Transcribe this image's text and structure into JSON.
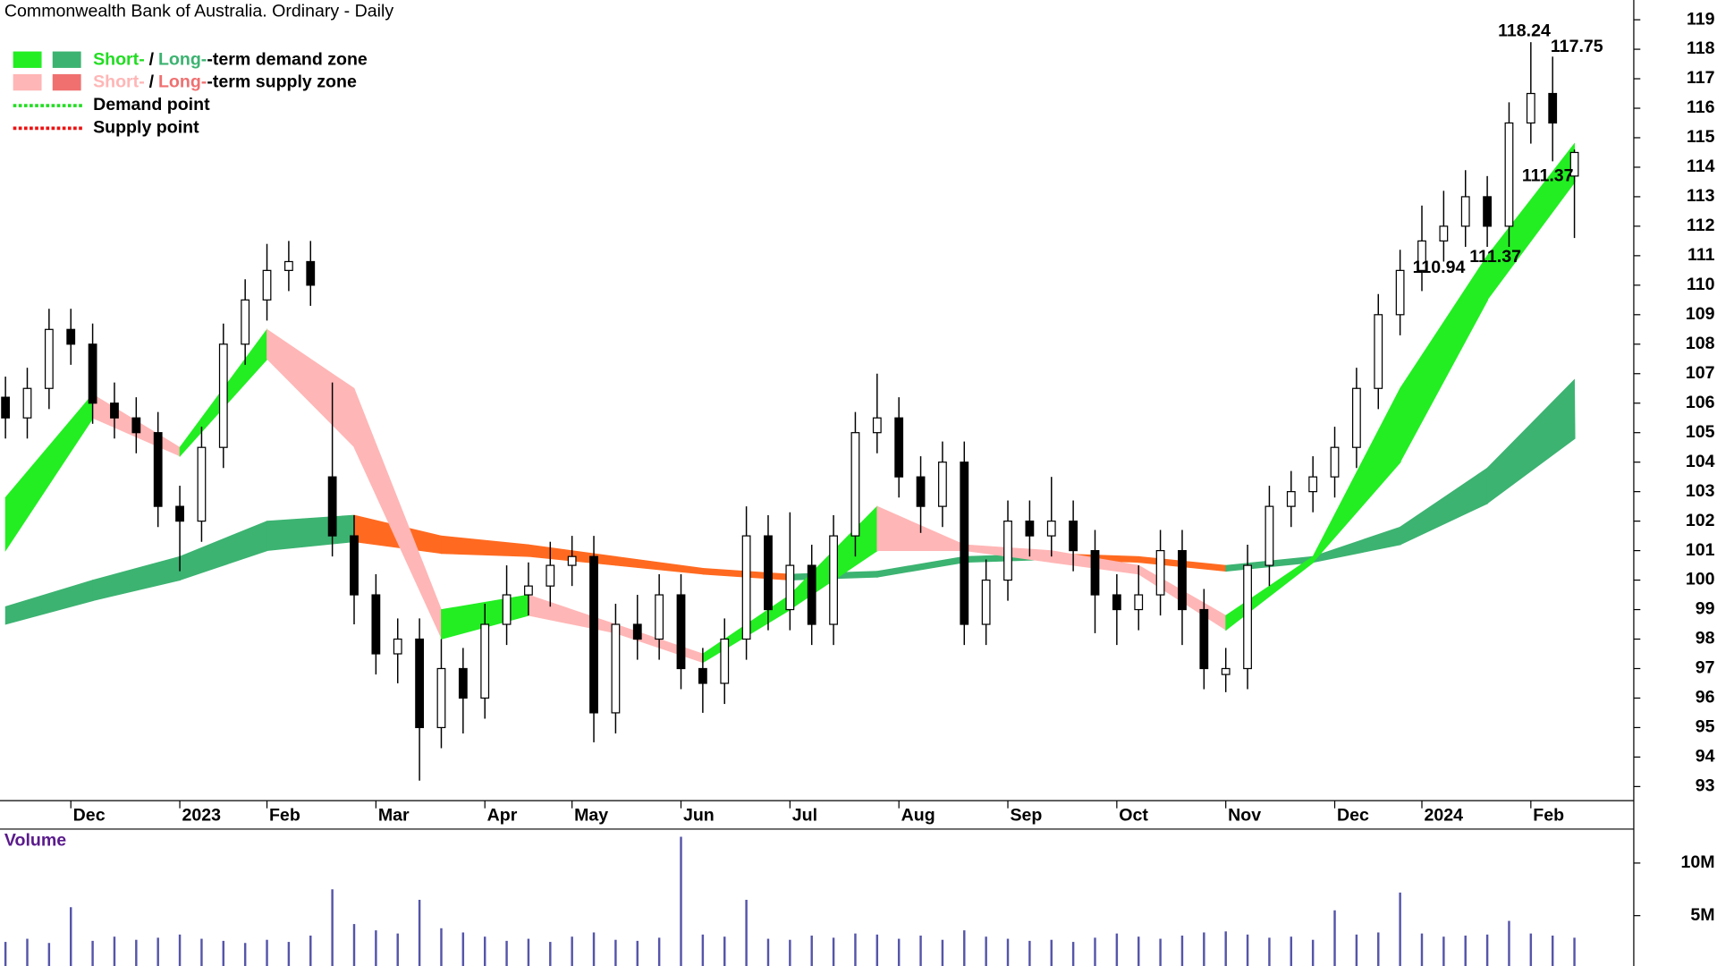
{
  "chart_data": [
    {
      "type": "candlestick",
      "title": "Commonwealth Bank of Australia. Ordinary - Daily",
      "categories": [
        null,
        null,
        null,
        "Dec",
        null,
        null,
        null,
        null,
        "2023",
        null,
        null,
        null,
        "Feb",
        null,
        null,
        null,
        null,
        "Mar",
        null,
        null,
        null,
        null,
        "Apr",
        null,
        null,
        null,
        "May",
        null,
        null,
        null,
        null,
        "Jun",
        null,
        null,
        null,
        null,
        "Jul",
        null,
        null,
        null,
        null,
        "Aug",
        null,
        null,
        null,
        null,
        "Sep",
        null,
        null,
        null,
        null,
        "Oct",
        null,
        null,
        null,
        null,
        "Nov",
        null,
        null,
        null,
        null,
        "Dec",
        null,
        null,
        null,
        "2024",
        null,
        null,
        null,
        null,
        "Feb",
        null,
        null
      ],
      "open": [
        106.2,
        105.5,
        106.5,
        108.5,
        108,
        106,
        105.5,
        105,
        102.5,
        102,
        104.5,
        108,
        109.5,
        110.5,
        110.8,
        103.5,
        101.5,
        99.5,
        97.5,
        98,
        95,
        97,
        96,
        98.5,
        99.5,
        99.8,
        100.5,
        100.8,
        95.5,
        98.5,
        98,
        99.5,
        97,
        96.5,
        98,
        101.5,
        99,
        100.5,
        98.5,
        101.5,
        105,
        105.5,
        103.5,
        102.5,
        104,
        98.5,
        100,
        102,
        101.5,
        102,
        101,
        99.5,
        99,
        99.5,
        101,
        99,
        96.8,
        97,
        100.5,
        102.5,
        103,
        103.5,
        104.5,
        106.5,
        109,
        110.5,
        111.5,
        112,
        113,
        112,
        115.5,
        116.5,
        113.7
      ],
      "high": [
        106.9,
        107.2,
        109.2,
        109.2,
        108.7,
        106.7,
        106.2,
        105.7,
        103.2,
        105.2,
        108.7,
        110.2,
        111.4,
        111.5,
        111.5,
        106.7,
        102.2,
        100.2,
        98.7,
        98.7,
        98,
        97.7,
        99.2,
        100.5,
        100.6,
        101.3,
        101.5,
        101.5,
        99.2,
        99.5,
        100.2,
        100.2,
        97.7,
        98.7,
        102.5,
        102.2,
        102.3,
        101.2,
        102.2,
        105.7,
        107,
        106.2,
        104.2,
        104.7,
        104.7,
        100.7,
        102.7,
        102.7,
        103.5,
        102.7,
        101.7,
        100.2,
        100.5,
        101.7,
        101.7,
        99.7,
        97.7,
        101.2,
        103.2,
        103.7,
        104.2,
        105.2,
        107.2,
        109.7,
        111.2,
        112.7,
        113.2,
        113.9,
        113.7,
        116.2,
        118.24,
        117.75,
        114.6
      ],
      "low": [
        104.8,
        104.8,
        105.8,
        107.3,
        105.3,
        104.8,
        104.3,
        101.8,
        100.3,
        101.3,
        103.8,
        107.3,
        108.8,
        109.8,
        109.3,
        100.8,
        98.5,
        96.8,
        96.5,
        93.2,
        94.3,
        94.8,
        95.3,
        97.8,
        98.8,
        99.1,
        99.8,
        94.5,
        94.8,
        97.3,
        97.3,
        96.3,
        95.5,
        95.8,
        97.3,
        98.3,
        98.3,
        97.8,
        97.8,
        100.8,
        104.3,
        102.8,
        101.6,
        101.8,
        97.8,
        97.8,
        99.3,
        100.8,
        100.8,
        100.3,
        98.2,
        97.8,
        98.3,
        98.8,
        97.8,
        96.3,
        96.2,
        96.3,
        99.8,
        101.8,
        102.3,
        102.8,
        103.8,
        105.8,
        108.3,
        109.8,
        110.8,
        111.3,
        111.3,
        111.3,
        114.8,
        114.2,
        111.6
      ],
      "close": [
        105.5,
        106.5,
        108.5,
        108,
        106,
        105.5,
        105,
        102.5,
        102,
        104.5,
        108,
        109.5,
        110.5,
        110.8,
        110,
        101.5,
        99.5,
        97.5,
        98,
        95,
        97,
        96,
        98.5,
        99.5,
        99.8,
        100.5,
        100.8,
        95.5,
        98.5,
        98,
        99.5,
        97,
        96.5,
        98,
        101.5,
        99,
        100.5,
        98.5,
        101.5,
        105,
        105.5,
        103.5,
        102.5,
        104,
        98.5,
        100,
        102,
        101.5,
        102,
        101,
        99.5,
        99,
        99.5,
        101,
        99,
        97,
        97,
        100.5,
        102.5,
        103,
        103.5,
        104.5,
        106.5,
        109,
        110.5,
        111.5,
        112,
        113,
        112,
        115.5,
        116.5,
        115.5,
        114.5
      ],
      "ylim": [
        92.56,
        119.67
      ],
      "yticks": [
        93,
        94,
        95,
        96,
        97,
        98,
        99,
        100,
        101,
        102,
        103,
        104,
        105,
        106,
        107,
        108,
        109,
        110,
        111,
        112,
        113,
        114,
        115,
        116,
        117,
        118,
        119
      ],
      "bands": [
        {
          "x": [
            0,
            4,
            8,
            12,
            16,
            20,
            24,
            28,
            32,
            36,
            40,
            44,
            48,
            52,
            56,
            60,
            64,
            68,
            72
          ],
          "upper": [
            99.1,
            100,
            100.8,
            102,
            102.2,
            101.5,
            101.2,
            100.8,
            100.4,
            100.2,
            100.3,
            100.8,
            100.9,
            100.8,
            100.5,
            100.8,
            101.8,
            103.8,
            106.8
          ],
          "lower": [
            98.5,
            99.3,
            100,
            101,
            101.3,
            100.9,
            100.8,
            100.5,
            100.2,
            100,
            100.1,
            100.6,
            100.7,
            100.6,
            100.3,
            100.6,
            101.2,
            102.6,
            104.8
          ],
          "color": "#3cb371",
          "color_down": "#ff6a20"
        },
        {
          "x": [
            0,
            4,
            8,
            12,
            16,
            20,
            24,
            28,
            32,
            36,
            40,
            44,
            48,
            52,
            56,
            60,
            64,
            68,
            72
          ],
          "upper": [
            102.8,
            106.3,
            104.5,
            108.5,
            106.5,
            99,
            99.5,
            98.5,
            97.5,
            99.5,
            102.5,
            101.2,
            101,
            100.5,
            98.8,
            100.8,
            106.5,
            111,
            114.8
          ],
          "lower": [
            101,
            105.5,
            104.2,
            107.5,
            104.5,
            98,
            98.8,
            98.2,
            97.2,
            99,
            101,
            101,
            100.6,
            100.2,
            98.3,
            100.6,
            104,
            109.5,
            113.5
          ],
          "color": "#22ee22",
          "color_down": "#ffb6b6"
        }
      ],
      "annotations": [
        118.24,
        117.75,
        111.37,
        110.94,
        111.37
      ],
      "legend": [
        {
          "swatches": [
            "#22ee22",
            "#3cb371"
          ],
          "parts": [
            "Short-",
            "/",
            "Long-",
            "-term demand zone"
          ],
          "part_colors": [
            "#22dd22",
            "#000000",
            "#3cb371",
            "#000000"
          ]
        },
        {
          "swatches": [
            "#ffb6b6",
            "#f07070"
          ],
          "parts": [
            "Short-",
            "/",
            "Long-",
            "-term supply zone"
          ],
          "part_colors": [
            "#ffb6b6",
            "#000000",
            "#f07070",
            "#000000"
          ]
        },
        {
          "line": "#22dd22",
          "parts": [
            "Demand point"
          ],
          "part_colors": [
            "#000000"
          ]
        },
        {
          "line": "#ee1111",
          "parts": [
            "Supply point"
          ],
          "part_colors": [
            "#000000"
          ]
        }
      ]
    },
    {
      "type": "bar",
      "title": "Volume",
      "values": [
        2500000,
        2800000,
        2400000,
        5800000,
        2600000,
        3000000,
        2700000,
        2900000,
        3200000,
        2800000,
        2600000,
        2400000,
        2700000,
        2500000,
        3100000,
        7500000,
        4200000,
        3600000,
        3300000,
        6500000,
        3800000,
        3400000,
        3000000,
        2600000,
        2800000,
        2500000,
        3000000,
        3400000,
        2700000,
        2600000,
        2900000,
        12500000,
        3200000,
        3000000,
        6500000,
        2800000,
        2700000,
        3100000,
        2900000,
        3300000,
        3200000,
        2800000,
        3100000,
        2700000,
        3600000,
        3000000,
        2800000,
        2600000,
        2700000,
        2500000,
        2900000,
        3300000,
        3000000,
        2800000,
        3100000,
        3400000,
        3500000,
        3200000,
        2900000,
        3000000,
        2700000,
        5500000,
        3200000,
        3400000,
        7200000,
        3300000,
        3000000,
        3100000,
        3200000,
        4500000,
        3300000,
        3100000,
        2900000
      ],
      "color": "#5555aa",
      "ylim": [
        0,
        13230000
      ],
      "yticks": [
        {
          "value": 5000000,
          "label": "5M"
        },
        {
          "value": 10000000,
          "label": "10M"
        }
      ]
    }
  ]
}
